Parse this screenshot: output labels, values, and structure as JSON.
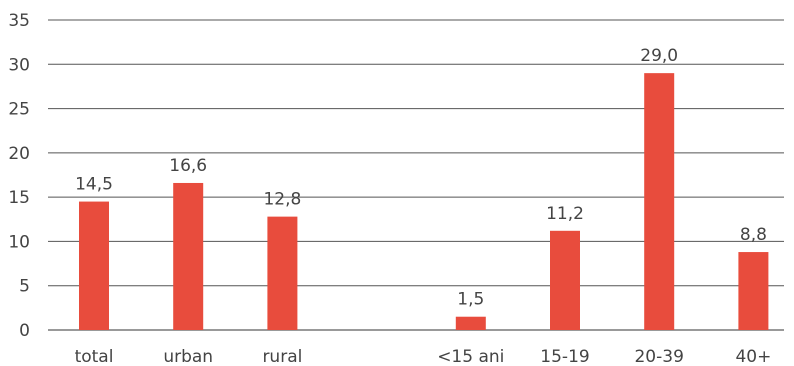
{
  "chart_data": {
    "type": "bar",
    "title": "",
    "xlabel": "",
    "ylabel": "",
    "ylim": [
      0,
      35
    ],
    "yticks": [
      0,
      5,
      10,
      15,
      20,
      25,
      30,
      35
    ],
    "ytick_labels": [
      "0",
      "5",
      "10",
      "15",
      "20",
      "25",
      "30",
      "35"
    ],
    "grid": true,
    "bar_color": "#e84c3d",
    "categories": [
      "total",
      "urban",
      "rural",
      "",
      "<15 ani",
      "15-19",
      "20-39",
      "40+"
    ],
    "values": [
      14.5,
      16.6,
      12.8,
      null,
      1.5,
      11.2,
      29.0,
      8.8
    ],
    "data_labels": [
      "14,5",
      "16,6",
      "12,8",
      "",
      "1,5",
      "11,2",
      "29,0",
      "8,8"
    ]
  }
}
